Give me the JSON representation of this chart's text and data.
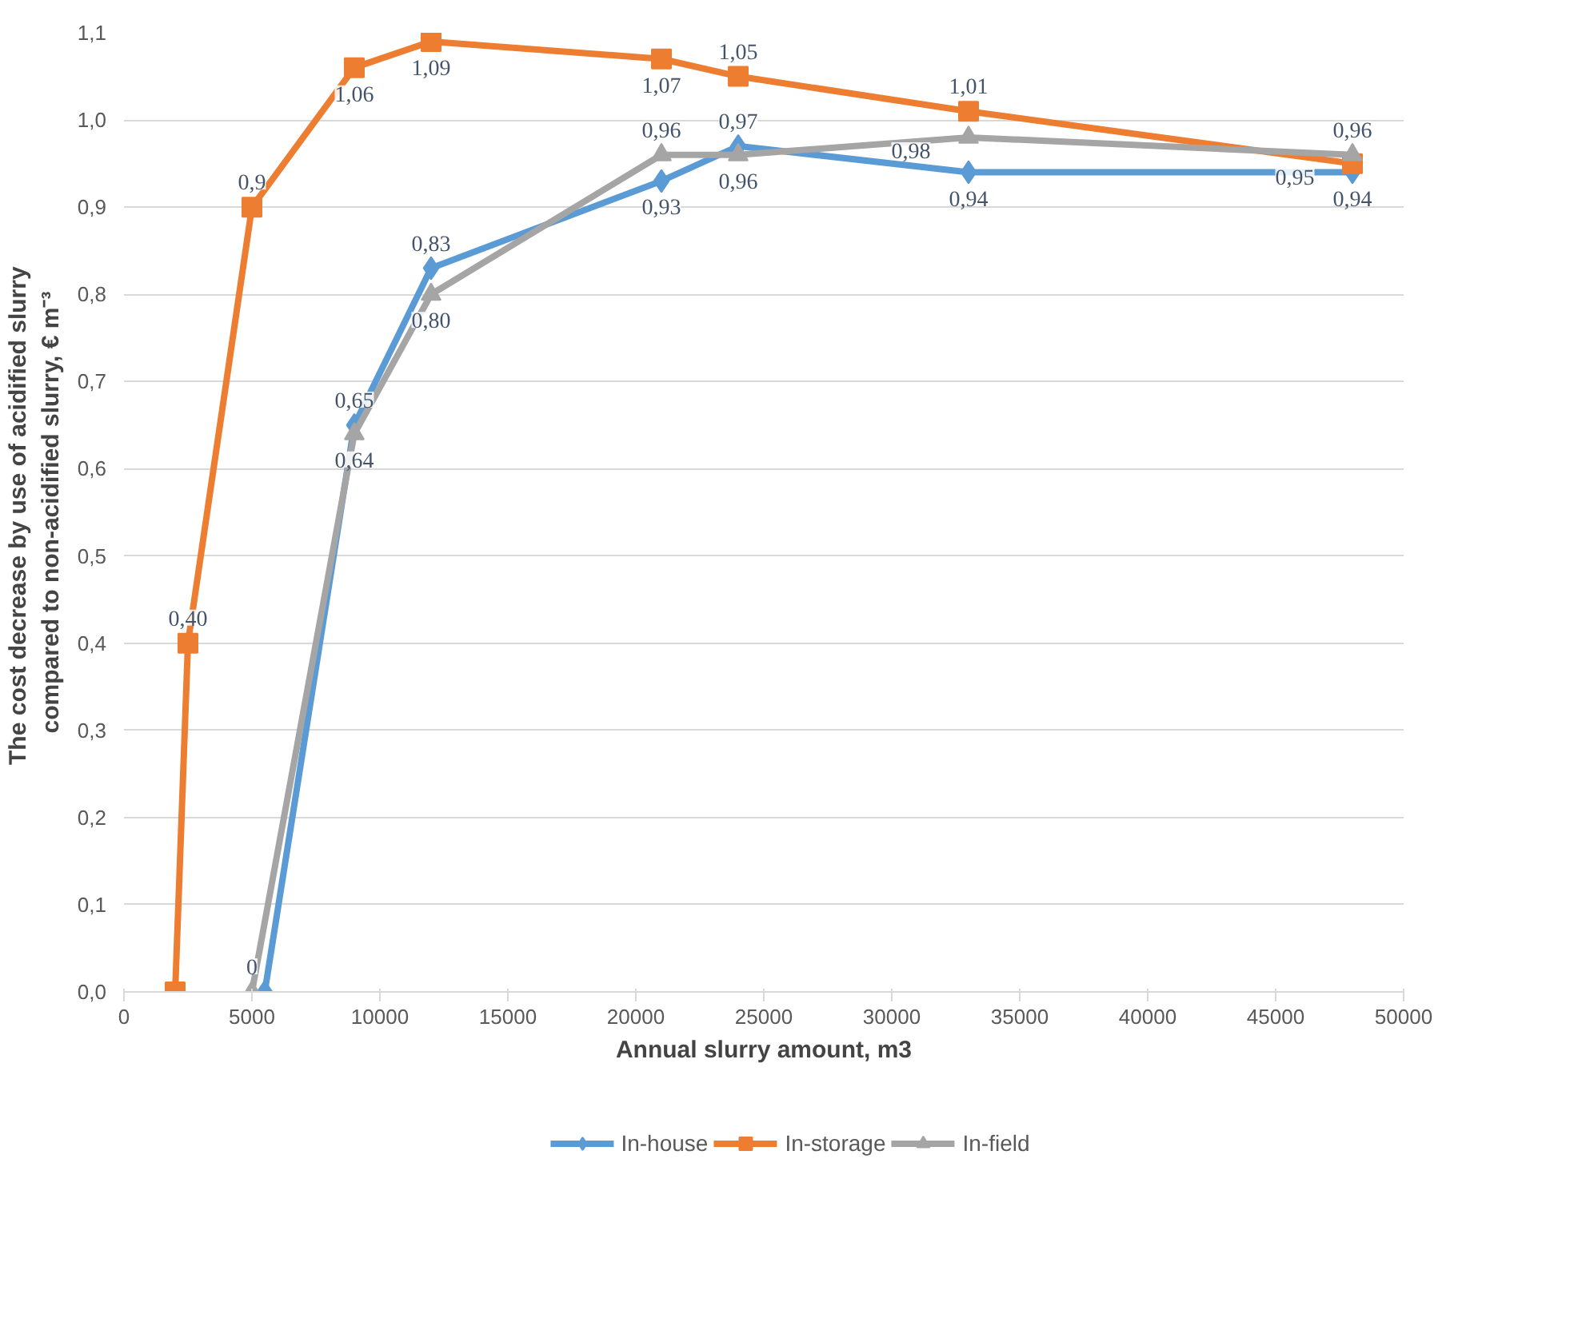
{
  "chart_data": {
    "type": "line",
    "xlabel": "Annual slurry amount, m3",
    "ylabel": "The cost decrease  by use of acidified slurry compared to non-acidified slurry, € m⁻³",
    "xlim": [
      0,
      50000
    ],
    "xticks": [
      0,
      5000,
      10000,
      15000,
      20000,
      25000,
      30000,
      35000,
      40000,
      45000,
      50000
    ],
    "ylim": [
      0,
      1.1
    ],
    "yticks": [
      {
        "value": 0,
        "label": "0,0"
      },
      {
        "value": 0.1,
        "label": "0,1"
      },
      {
        "value": 0.2,
        "label": "0,2"
      },
      {
        "value": 0.3,
        "label": "0,3"
      },
      {
        "value": 0.4,
        "label": "0,4"
      },
      {
        "value": 0.5,
        "label": "0,5"
      },
      {
        "value": 0.6,
        "label": "0,6"
      },
      {
        "value": 0.7,
        "label": "0,7"
      },
      {
        "value": 0.8,
        "label": "0,8"
      },
      {
        "value": 0.9,
        "label": "0,9"
      },
      {
        "value": 1.0,
        "label": "1,0"
      },
      {
        "value": 1.1,
        "label": "1,1"
      }
    ],
    "grid": "y",
    "legend": "bottom",
    "series": [
      {
        "name": "In-house",
        "color": "#5b9bd5",
        "marker": "diamond",
        "x": [
          5500,
          9000,
          12000,
          21000,
          24000,
          33000,
          48000
        ],
        "values": [
          0,
          0.65,
          0.83,
          0.93,
          0.97,
          0.94,
          0.94
        ],
        "value_labels": [
          null,
          "0,65",
          "0,83",
          "0,93",
          "0,97",
          "0,94",
          "0,94"
        ]
      },
      {
        "name": "In-storage",
        "color": "#ed7d31",
        "marker": "square",
        "x": [
          2000,
          2500,
          5000,
          9000,
          12000,
          21000,
          24000,
          33000,
          48000
        ],
        "values": [
          0,
          0.4,
          0.9,
          1.06,
          1.09,
          1.07,
          1.05,
          1.01,
          0.95
        ],
        "value_labels": [
          null,
          "0,40",
          "0,9",
          "1,06",
          "1,09",
          "1,07",
          "1,05",
          "1,01",
          "0,95"
        ]
      },
      {
        "name": "In-field",
        "color": "#a5a5a5",
        "marker": "triangle",
        "x": [
          5000,
          9000,
          12000,
          21000,
          24000,
          33000,
          48000
        ],
        "values": [
          0,
          0.64,
          0.8,
          0.96,
          0.96,
          0.98,
          0.96
        ],
        "value_labels": [
          "0",
          "0,64",
          "0,80",
          "0,96",
          "0,96",
          "0,98",
          "0,96"
        ]
      }
    ]
  }
}
